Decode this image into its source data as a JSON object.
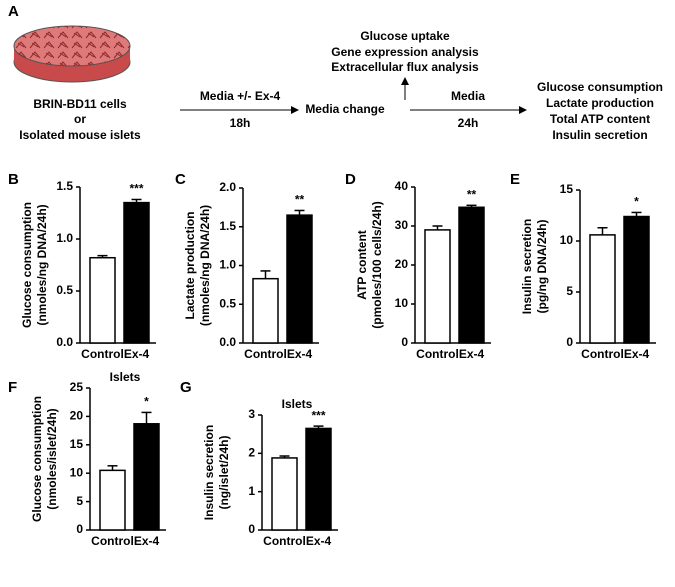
{
  "schematic": {
    "panel": "A",
    "cells": [
      "BRIN-BD11  cells",
      "or",
      "Isolated mouse islets"
    ],
    "step1": {
      "label": "Media +/- Ex-4",
      "time": "18h"
    },
    "middle": "Media change",
    "branch": [
      "Glucose uptake",
      "Gene expression analysis",
      "Extracellular flux analysis"
    ],
    "step2": {
      "label": "Media",
      "time": "24h"
    },
    "readouts": [
      "Glucose consumption",
      "Lactate production",
      "Total ATP content",
      "Insulin secretion"
    ]
  },
  "chart_data": [
    {
      "type": "bar",
      "panel": "B",
      "ylabel": [
        "Glucose consumption",
        "(nmoles/ng DNA/24h)"
      ],
      "categories": [
        "Control",
        "Ex-4"
      ],
      "colors": [
        "#ffffff",
        "#000000"
      ],
      "values": [
        0.82,
        1.35
      ],
      "errors": [
        0.02,
        0.03
      ],
      "significance": "***",
      "ylim": [
        0,
        1.5
      ],
      "yticks": [
        {
          "value": 0,
          "label": "0.0"
        },
        0.5,
        {
          "value": 1,
          "label": "1.0"
        },
        1.5
      ]
    },
    {
      "type": "bar",
      "panel": "C",
      "ylabel": [
        "Lactate production",
        "(nmoles/ng DNA/24h)"
      ],
      "categories": [
        "Control",
        "Ex-4"
      ],
      "colors": [
        "#ffffff",
        "#000000"
      ],
      "values": [
        0.83,
        1.65
      ],
      "errors": [
        0.1,
        0.06
      ],
      "significance": "**",
      "ylim": [
        0,
        2
      ],
      "yticks": [
        {
          "value": 0,
          "label": "0.0"
        },
        0.5,
        {
          "value": 1,
          "label": "1.0"
        },
        1.5,
        {
          "value": 2,
          "label": "2.0"
        }
      ]
    },
    {
      "type": "bar",
      "panel": "D",
      "ylabel": [
        "ATP content",
        "(pmoles/100 cells/24h)"
      ],
      "categories": [
        "Control",
        "Ex-4"
      ],
      "colors": [
        "#ffffff",
        "#000000"
      ],
      "values": [
        29,
        34.8
      ],
      "errors": [
        1,
        0.5
      ],
      "significance": "**",
      "ylim": [
        0,
        40
      ],
      "yticks": [
        0,
        10,
        20,
        30,
        40
      ]
    },
    {
      "type": "bar",
      "panel": "E",
      "ylabel": [
        "Insulin secretion",
        "(pg/ng DNA/24h)"
      ],
      "categories": [
        "Control",
        "Ex-4"
      ],
      "colors": [
        "#ffffff",
        "#000000"
      ],
      "values": [
        10.6,
        12.4
      ],
      "errors": [
        0.7,
        0.4
      ],
      "significance": "*",
      "ylim": [
        0,
        15
      ],
      "yticks": [
        0,
        5,
        10,
        15
      ]
    },
    {
      "type": "bar",
      "panel": "F",
      "title": "Islets",
      "ylabel": [
        "Glucose consumption",
        "(nmoles/islet/24h)"
      ],
      "categories": [
        "Control",
        "Ex-4"
      ],
      "colors": [
        "#ffffff",
        "#000000"
      ],
      "values": [
        10.5,
        18.7
      ],
      "errors": [
        0.8,
        2
      ],
      "significance": "*",
      "ylim": [
        0,
        25
      ],
      "yticks": [
        0,
        5,
        10,
        15,
        20,
        25
      ]
    },
    {
      "type": "bar",
      "panel": "G",
      "title": "Islets",
      "ylabel": [
        "Insulin secretion",
        "(ng/islet/24h)"
      ],
      "categories": [
        "Control",
        "Ex-4"
      ],
      "colors": [
        "#ffffff",
        "#000000"
      ],
      "values": [
        1.88,
        2.65
      ],
      "errors": [
        0.05,
        0.06
      ],
      "significance": "***",
      "ylim": [
        0,
        3
      ],
      "yticks": [
        0,
        1,
        2,
        3
      ]
    }
  ]
}
